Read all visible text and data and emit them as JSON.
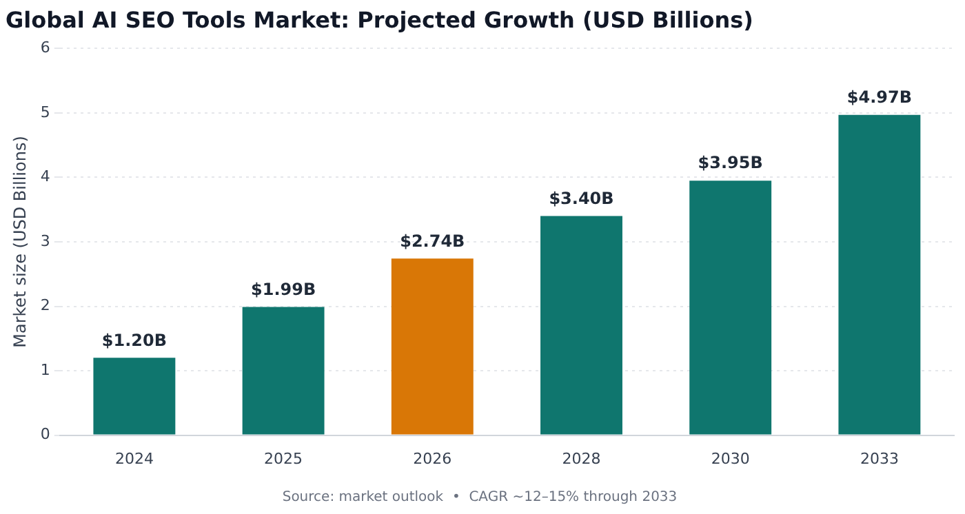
{
  "chart_data": {
    "type": "bar",
    "title": "Global AI SEO Tools Market: Projected Growth (USD Billions)",
    "ylabel": "Market size (USD Billions)",
    "categories": [
      "2024",
      "2025",
      "2026",
      "2028",
      "2030",
      "2033"
    ],
    "values": [
      1.2,
      1.99,
      2.74,
      3.4,
      3.95,
      4.97
    ],
    "colors": [
      "#0f766e",
      "#0f766e",
      "#d97706",
      "#0f766e",
      "#0f766e",
      "#0f766e"
    ],
    "value_labels": [
      "$1.20B",
      "$1.99B",
      "$2.74B",
      "$3.40B",
      "$3.95B",
      "$4.97B"
    ],
    "ylim": [
      0,
      6
    ],
    "yticks": [
      0,
      1,
      2,
      3,
      4,
      5,
      6
    ],
    "grid": "y",
    "legend": false,
    "annotations": [
      "Source: market outlook  •  CAGR ~12–15% through 2033"
    ]
  }
}
